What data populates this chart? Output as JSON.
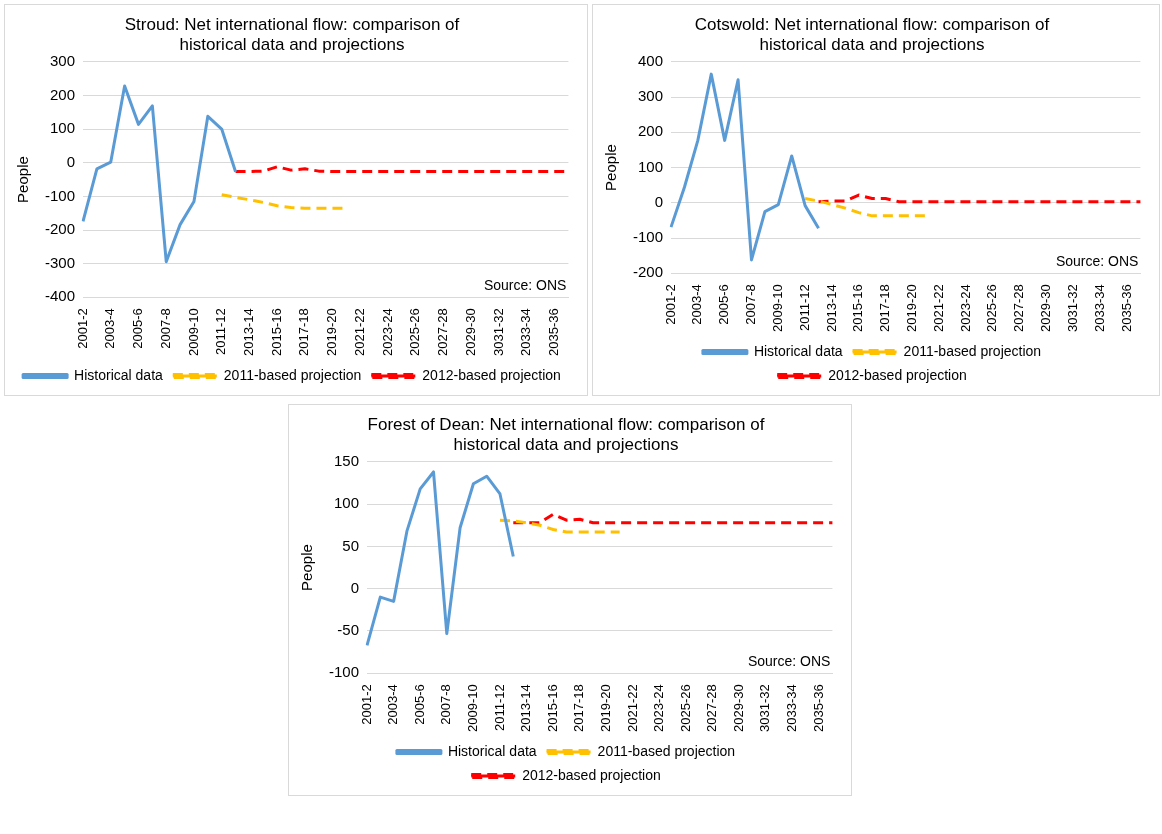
{
  "chart_data": [
    {
      "type": "line",
      "title": "Stroud: Net international flow: comparison of historical data and projections",
      "ylabel": "People",
      "annotations": [
        "Source: ONS"
      ],
      "categories": [
        "2001-2",
        null,
        "2003-4",
        null,
        "2005-6",
        null,
        "2007-8",
        null,
        "2009-10",
        null,
        "2011-12",
        null,
        "2013-14",
        null,
        "2015-16",
        null,
        "2017-18",
        null,
        "2019-20",
        null,
        "2021-22",
        null,
        "2023-24",
        null,
        "2025-26",
        null,
        "2027-28",
        null,
        "2029-30",
        null,
        "3031-32",
        null,
        "2033-34",
        null,
        "2035-36",
        null
      ],
      "series": [
        {
          "name": "Historical data",
          "color": "#5b9bd5",
          "line_style": "solid",
          "values": [
            -174,
            -18,
            2,
            228,
            114,
            169,
            -294,
            -184,
            -115,
            138,
            100,
            -27,
            null,
            null,
            null,
            null,
            null,
            null,
            null,
            null,
            null,
            null,
            null,
            null,
            null,
            null,
            null,
            null,
            null,
            null,
            null,
            null,
            null,
            null,
            null,
            null
          ]
        },
        {
          "name": "2011-based projection",
          "color": "#ffc000",
          "line_style": "dashed",
          "values": [
            null,
            null,
            null,
            null,
            null,
            null,
            null,
            null,
            null,
            null,
            -95,
            -103,
            -110,
            -118,
            -128,
            -133,
            -135,
            -135,
            -135,
            -135,
            null,
            null,
            null,
            null,
            null,
            null,
            null,
            null,
            null,
            null,
            null,
            null,
            null,
            null,
            null,
            null
          ]
        },
        {
          "name": "2012-based projection",
          "color": "#ff0000",
          "line_style": "dashed",
          "values": [
            null,
            null,
            null,
            null,
            null,
            null,
            null,
            null,
            null,
            null,
            null,
            -26,
            -26,
            -25,
            -12,
            -22,
            -18,
            -25,
            -26,
            -26,
            -26,
            -26,
            -26,
            -26,
            -26,
            -26,
            -26,
            -26,
            -26,
            -26,
            -26,
            -26,
            -26,
            -26,
            -26,
            -26
          ]
        }
      ],
      "ylim": [
        -400,
        300
      ],
      "yticks": [
        -400,
        -300,
        -200,
        -100,
        0,
        100,
        200,
        300
      ],
      "grid": "y",
      "legend": "bottom",
      "marker": "none"
    },
    {
      "type": "line",
      "title": "Cotswold: Net international flow: comparison of historical data and projections",
      "ylabel": "People",
      "annotations": [
        "Source: ONS"
      ],
      "categories": [
        "2001-2",
        null,
        "2003-4",
        null,
        "2005-6",
        null,
        "2007-8",
        null,
        "2009-10",
        null,
        "2011-12",
        null,
        "2013-14",
        null,
        "2015-16",
        null,
        "2017-18",
        null,
        "2019-20",
        null,
        "2021-22",
        null,
        "2023-24",
        null,
        "2025-26",
        null,
        "2027-28",
        null,
        "2029-30",
        null,
        "3031-32",
        null,
        "2033-34",
        null,
        "2035-36",
        null
      ],
      "series": [
        {
          "name": "Historical data",
          "color": "#5b9bd5",
          "line_style": "solid",
          "values": [
            -69,
            44,
            177,
            365,
            177,
            349,
            -162,
            -25,
            -5,
            133,
            -8,
            -72,
            null,
            null,
            null,
            null,
            null,
            null,
            null,
            null,
            null,
            null,
            null,
            null,
            null,
            null,
            null,
            null,
            null,
            null,
            null,
            null,
            null,
            null,
            null,
            null
          ]
        },
        {
          "name": "2011-based projection",
          "color": "#ffc000",
          "line_style": "dashed",
          "values": [
            null,
            null,
            null,
            null,
            null,
            null,
            null,
            null,
            null,
            null,
            12,
            5,
            -5,
            -15,
            -28,
            -37,
            -37,
            -37,
            -37,
            -37,
            null,
            null,
            null,
            null,
            null,
            null,
            null,
            null,
            null,
            null,
            null,
            null,
            null,
            null,
            null,
            null
          ]
        },
        {
          "name": "2012-based projection",
          "color": "#ff0000",
          "line_style": "dashed",
          "values": [
            null,
            null,
            null,
            null,
            null,
            null,
            null,
            null,
            null,
            null,
            null,
            3,
            5,
            5,
            22,
            12,
            12,
            3,
            3,
            3,
            3,
            3,
            3,
            3,
            3,
            3,
            3,
            3,
            3,
            3,
            3,
            3,
            3,
            3,
            3,
            3
          ]
        }
      ],
      "ylim": [
        -200,
        400
      ],
      "yticks": [
        -200,
        -100,
        0,
        100,
        200,
        300,
        400
      ],
      "grid": "y",
      "legend": "bottom",
      "marker": "none"
    },
    {
      "type": "line",
      "title": "Forest of Dean: Net international flow: comparison of historical data and projections",
      "ylabel": "People",
      "annotations": [
        "Source: ONS"
      ],
      "categories": [
        "2001-2",
        null,
        "2003-4",
        null,
        "2005-6",
        null,
        "2007-8",
        null,
        "2009-10",
        null,
        "2011-12",
        null,
        "2013-14",
        null,
        "2015-16",
        null,
        "2017-18",
        null,
        "2019-20",
        null,
        "2021-22",
        null,
        "2023-24",
        null,
        "2025-26",
        null,
        "2027-28",
        null,
        "2029-30",
        null,
        "3031-32",
        null,
        "2033-34",
        null,
        "2035-36",
        null
      ],
      "series": [
        {
          "name": "Historical data",
          "color": "#5b9bd5",
          "line_style": "solid",
          "values": [
            -67,
            -10,
            -15,
            68,
            118,
            138,
            -53,
            72,
            124,
            133,
            112,
            38,
            null,
            null,
            null,
            null,
            null,
            null,
            null,
            null,
            null,
            null,
            null,
            null,
            null,
            null,
            null,
            null,
            null,
            null,
            null,
            null,
            null,
            null,
            null,
            null
          ]
        },
        {
          "name": "2011-based projection",
          "color": "#ffc000",
          "line_style": "dashed",
          "values": [
            null,
            null,
            null,
            null,
            null,
            null,
            null,
            null,
            null,
            null,
            81,
            80,
            78,
            75,
            70,
            67,
            67,
            67,
            67,
            67,
            null,
            null,
            null,
            null,
            null,
            null,
            null,
            null,
            null,
            null,
            null,
            null,
            null,
            null,
            null,
            null
          ]
        },
        {
          "name": "2012-based projection",
          "color": "#ff0000",
          "line_style": "dashed",
          "values": [
            null,
            null,
            null,
            null,
            null,
            null,
            null,
            null,
            null,
            null,
            null,
            78,
            78,
            78,
            88,
            81,
            82,
            78,
            78,
            78,
            78,
            78,
            78,
            78,
            78,
            78,
            78,
            78,
            78,
            78,
            78,
            78,
            78,
            78,
            78,
            78
          ]
        }
      ],
      "ylim": [
        -100,
        150
      ],
      "yticks": [
        -100,
        -50,
        0,
        50,
        100,
        150
      ],
      "grid": "y",
      "legend": "bottom",
      "marker": "none"
    }
  ]
}
